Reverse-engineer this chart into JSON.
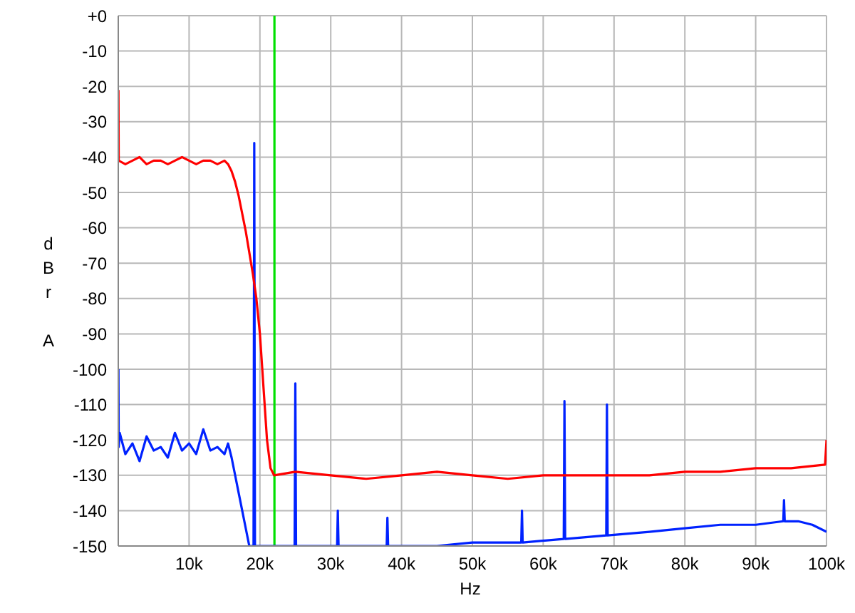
{
  "chart_data": {
    "type": "line",
    "xlabel": "Hz",
    "ylabel": "dBr A",
    "xlim": [
      0,
      100000
    ],
    "xticks": [
      {
        "value": 10000,
        "label": "10k"
      },
      {
        "value": 20000,
        "label": "20k"
      },
      {
        "value": 30000,
        "label": "30k"
      },
      {
        "value": 40000,
        "label": "40k"
      },
      {
        "value": 50000,
        "label": "50k"
      },
      {
        "value": 60000,
        "label": "60k"
      },
      {
        "value": 70000,
        "label": "70k"
      },
      {
        "value": 80000,
        "label": "80k"
      },
      {
        "value": 90000,
        "label": "90k"
      },
      {
        "value": 100000,
        "label": "100k"
      }
    ],
    "ylim": [
      -150,
      0
    ],
    "yticks": [
      {
        "value": 0,
        "label": "+0"
      },
      -10,
      -20,
      -30,
      -40,
      -50,
      -60,
      -70,
      -80,
      -90,
      -100,
      -110,
      -120,
      -130,
      -140,
      -150
    ],
    "grid": true,
    "legend": false,
    "marker": "none",
    "line_style": "solid",
    "ref_lines": [
      {
        "axis": "x",
        "value": 22050,
        "color": "#00e000"
      }
    ],
    "series": [
      {
        "color": "#0022ff",
        "x": [
          20,
          60,
          200,
          1000,
          2000,
          3000,
          4000,
          5000,
          6000,
          7000,
          8000,
          9000,
          10000,
          11000,
          12000,
          13000,
          14000,
          15000,
          15500,
          16000,
          16500,
          17000,
          17500,
          18000,
          18500,
          19100,
          19200,
          19300,
          20000,
          24900,
          25000,
          25100,
          30000,
          30900,
          31000,
          31100,
          37900,
          38000,
          38100,
          45000,
          50000,
          56900,
          57000,
          57100,
          62900,
          63000,
          63100,
          68900,
          69000,
          69100,
          75000,
          80000,
          85000,
          90000,
          93900,
          94000,
          94100,
          96000,
          98000,
          100000
        ],
        "values": [
          -100,
          -122,
          -118,
          -124,
          -121,
          -126,
          -119,
          -123,
          -122,
          -125,
          -118,
          -123,
          -121,
          -124,
          -117,
          -123,
          -122,
          -124,
          -121,
          -125,
          -130,
          -135,
          -140,
          -145,
          -150,
          -150,
          -36,
          -150,
          -150,
          -150,
          -104,
          -150,
          -150,
          -150,
          -140,
          -150,
          -150,
          -142,
          -150,
          -150,
          -149,
          -149,
          -140,
          -149,
          -148,
          -109,
          -148,
          -147,
          -110,
          -147,
          -146,
          -145,
          -144,
          -144,
          -143,
          -137,
          -143,
          -143,
          -144,
          -146
        ]
      },
      {
        "color": "#ff0000",
        "x": [
          20,
          60,
          1000,
          2000,
          3000,
          4000,
          5000,
          6000,
          7000,
          8000,
          9000,
          10000,
          11000,
          12000,
          13000,
          14000,
          15000,
          15500,
          16000,
          16500,
          17000,
          17500,
          18000,
          18500,
          19000,
          19500,
          20000,
          20500,
          21000,
          21500,
          22000,
          25000,
          30000,
          35000,
          40000,
          45000,
          50000,
          55000,
          60000,
          65000,
          70000,
          75000,
          80000,
          85000,
          90000,
          95000,
          99800,
          100000
        ],
        "values": [
          -21,
          -41,
          -42,
          -41,
          -40,
          -42,
          -41,
          -41,
          -42,
          -41,
          -40,
          -41,
          -42,
          -41,
          -41,
          -42,
          -41,
          -42,
          -44,
          -47,
          -51,
          -56,
          -61,
          -67,
          -73,
          -80,
          -90,
          -105,
          -120,
          -128,
          -130,
          -129,
          -130,
          -131,
          -130,
          -129,
          -130,
          -131,
          -130,
          -130,
          -130,
          -130,
          -129,
          -129,
          -128,
          -128,
          -127,
          -120
        ]
      }
    ]
  }
}
